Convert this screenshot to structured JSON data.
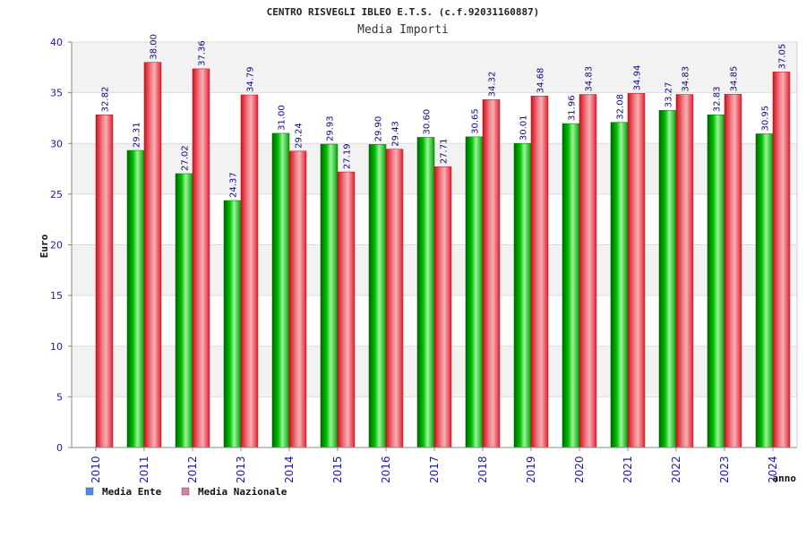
{
  "chart_data": {
    "type": "bar",
    "title": "CENTRO RISVEGLI IBLEO E.T.S. (c.f.92031160887)",
    "subtitle": "Media Importi",
    "ylabel": "Euro",
    "xlabel": "anno",
    "ylim": [
      0,
      40
    ],
    "yticks": [
      0,
      5,
      10,
      15,
      20,
      25,
      30,
      35,
      40
    ],
    "grid": true,
    "legend_position": "bottom-left",
    "categories": [
      "2010",
      "2011",
      "2012",
      "2013",
      "2014",
      "2015",
      "2016",
      "2017",
      "2018",
      "2019",
      "2020",
      "2021",
      "2022",
      "2023",
      "2024"
    ],
    "series": [
      {
        "name": "Media Ente",
        "color": "#00b000",
        "legend_color": "#4a90e2",
        "values": [
          null,
          29.31,
          27.02,
          24.37,
          31.0,
          29.93,
          29.9,
          30.6,
          30.65,
          30.01,
          31.96,
          32.08,
          33.27,
          32.83,
          30.95
        ],
        "labels": [
          "",
          "29.31",
          "27.02",
          "24.37",
          "31.00",
          "29.93",
          "29.90",
          "30.60",
          "30.65",
          "30.01",
          "31.96",
          "32.08",
          "33.27",
          "32.83",
          "30.95"
        ]
      },
      {
        "name": "Media Nazionale",
        "color": "#e8323c",
        "legend_color": "#e07aa8",
        "values": [
          32.82,
          38.0,
          37.36,
          34.79,
          29.24,
          27.19,
          29.43,
          27.71,
          34.32,
          34.68,
          34.83,
          34.94,
          34.83,
          34.85,
          37.05
        ],
        "labels": [
          "32.82",
          "38.00",
          "37.36",
          "34.79",
          "29.24",
          "27.19",
          "29.43",
          "27.71",
          "34.32",
          "34.68",
          "34.83",
          "34.94",
          "34.83",
          "34.85",
          "37.05"
        ]
      }
    ]
  }
}
